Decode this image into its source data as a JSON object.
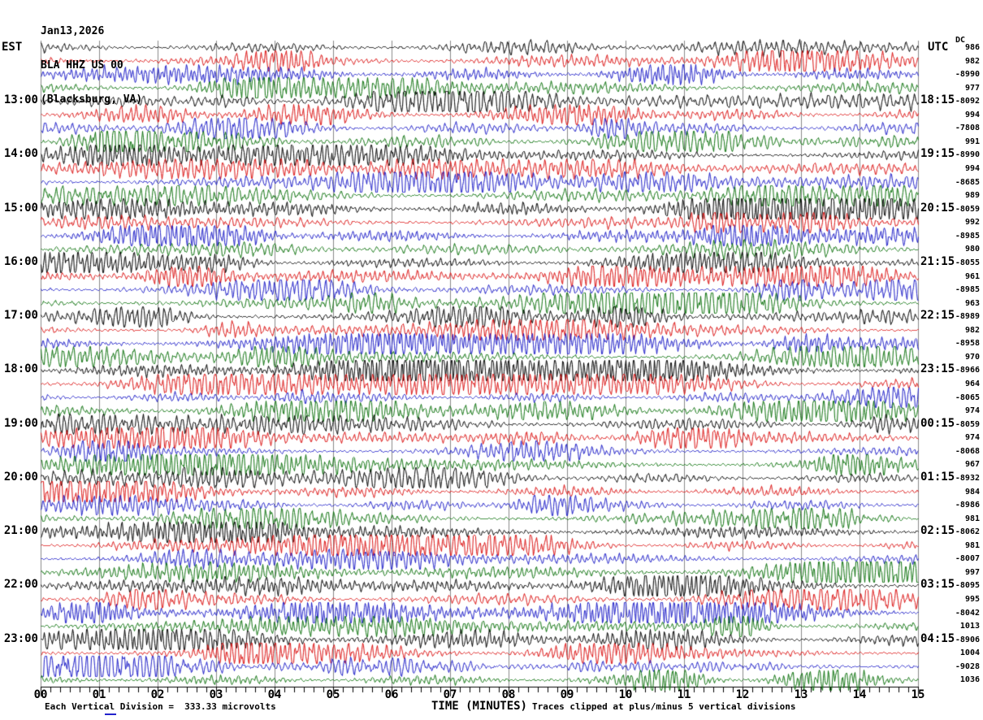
{
  "header": {
    "date": "Jan13,2026",
    "station": "BLA HHZ US 00",
    "location": "(Blacksburg, VA)"
  },
  "axes": {
    "left_tz": "EST",
    "right_tz": "UTC",
    "dc_header": "DC"
  },
  "footer": {
    "left": "Each Vertical Division =  333.33 microvolts",
    "right": "Traces clipped at plus/minus 5 vertical divisions"
  },
  "colors": {
    "black": "#000000",
    "red": "#dc1212",
    "blue": "#1d1dc8",
    "green": "#0d720d",
    "grid": "#8a8a8a",
    "axis": "#000000",
    "background": "#ffffff"
  },
  "chart_data": {
    "type": "line",
    "subtype": "helicorder-seismogram",
    "title": "BLA HHZ US 00 (Blacksburg, VA) Jan13,2026",
    "x_title": "TIME (MINUTES)",
    "x_ticks": [
      "00",
      "01",
      "02",
      "03",
      "04",
      "05",
      "06",
      "07",
      "08",
      "09",
      "10",
      "11",
      "12",
      "13",
      "14",
      "15"
    ],
    "x_range_minutes": [
      0,
      15
    ],
    "minor_tick_divisions_per_minute": 6,
    "traces_per_hour": 4,
    "trace_row_count": 48,
    "color_cycle": [
      "black",
      "red",
      "blue",
      "green"
    ],
    "grid": true,
    "rows": [
      {
        "est": "",
        "utc": "",
        "dc": "986"
      },
      {
        "est": "",
        "utc": "",
        "dc": "982"
      },
      {
        "est": "",
        "utc": "",
        "dc": "-8990"
      },
      {
        "est": "",
        "utc": "",
        "dc": "977"
      },
      {
        "est": "13:00",
        "utc": "18:15",
        "dc": "-8092"
      },
      {
        "est": "",
        "utc": "",
        "dc": "994"
      },
      {
        "est": "",
        "utc": "",
        "dc": "-7808"
      },
      {
        "est": "",
        "utc": "",
        "dc": "991"
      },
      {
        "est": "14:00",
        "utc": "19:15",
        "dc": "-8990"
      },
      {
        "est": "",
        "utc": "",
        "dc": "994"
      },
      {
        "est": "",
        "utc": "",
        "dc": "-8685"
      },
      {
        "est": "",
        "utc": "",
        "dc": "989"
      },
      {
        "est": "15:00",
        "utc": "20:15",
        "dc": "-8059"
      },
      {
        "est": "",
        "utc": "",
        "dc": "992"
      },
      {
        "est": "",
        "utc": "",
        "dc": "-8985"
      },
      {
        "est": "",
        "utc": "",
        "dc": "980"
      },
      {
        "est": "16:00",
        "utc": "21:15",
        "dc": "-8055"
      },
      {
        "est": "",
        "utc": "",
        "dc": "961"
      },
      {
        "est": "",
        "utc": "",
        "dc": "-8985"
      },
      {
        "est": "",
        "utc": "",
        "dc": "963"
      },
      {
        "est": "17:00",
        "utc": "22:15",
        "dc": "-8989"
      },
      {
        "est": "",
        "utc": "",
        "dc": "982"
      },
      {
        "est": "",
        "utc": "",
        "dc": "-8958"
      },
      {
        "est": "",
        "utc": "",
        "dc": "970"
      },
      {
        "est": "18:00",
        "utc": "23:15",
        "dc": "-8966"
      },
      {
        "est": "",
        "utc": "",
        "dc": "964"
      },
      {
        "est": "",
        "utc": "",
        "dc": "-8065"
      },
      {
        "est": "",
        "utc": "",
        "dc": "974"
      },
      {
        "est": "19:00",
        "utc": "00:15",
        "dc": "-8059"
      },
      {
        "est": "",
        "utc": "",
        "dc": "974"
      },
      {
        "est": "",
        "utc": "",
        "dc": "-8068"
      },
      {
        "est": "",
        "utc": "",
        "dc": "967"
      },
      {
        "est": "20:00",
        "utc": "01:15",
        "dc": "-8932"
      },
      {
        "est": "",
        "utc": "",
        "dc": "984"
      },
      {
        "est": "",
        "utc": "",
        "dc": "-8986"
      },
      {
        "est": "",
        "utc": "",
        "dc": "981"
      },
      {
        "est": "21:00",
        "utc": "02:15",
        "dc": "-8062"
      },
      {
        "est": "",
        "utc": "",
        "dc": "981"
      },
      {
        "est": "",
        "utc": "",
        "dc": "-8007"
      },
      {
        "est": "",
        "utc": "",
        "dc": "997"
      },
      {
        "est": "22:00",
        "utc": "03:15",
        "dc": "-8095"
      },
      {
        "est": "",
        "utc": "",
        "dc": "995"
      },
      {
        "est": "",
        "utc": "",
        "dc": "-8042"
      },
      {
        "est": "",
        "utc": "",
        "dc": "1013"
      },
      {
        "est": "23:00",
        "utc": "04:15",
        "dc": "-8906"
      },
      {
        "est": "",
        "utc": "",
        "dc": "1004"
      },
      {
        "est": "",
        "utc": "",
        "dc": "-9028"
      },
      {
        "est": "",
        "utc": "",
        "dc": "1036"
      }
    ]
  }
}
